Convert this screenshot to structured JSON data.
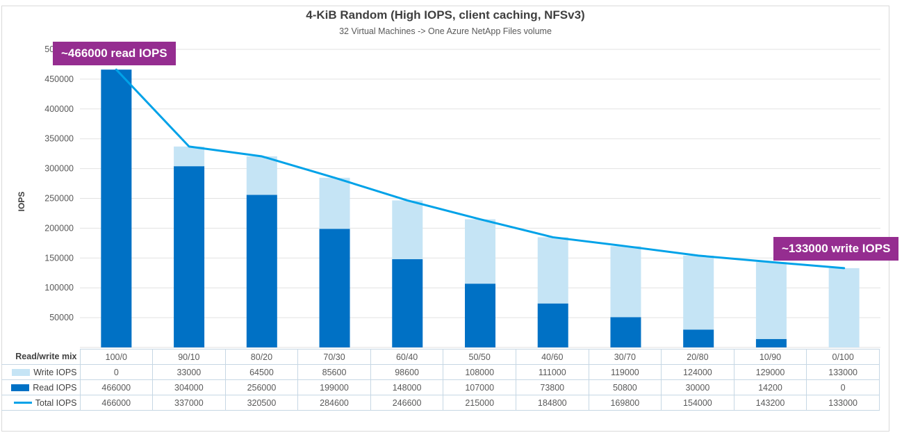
{
  "page": {
    "background": "#FFFFFF",
    "frame_border_color": "#D9D9D9",
    "accent_purple": "#952D90"
  },
  "chart_data": {
    "type": "bar+line",
    "title": "4-KiB Random (High IOPS, client caching, NFSv3)",
    "subtitle": "32 Virtual Machines -> One Azure NetApp Files volume",
    "ylabel": "IOPS",
    "ylim": [
      0,
      500000
    ],
    "ytick_step": 50000,
    "grid": true,
    "gridline_color": "#E2E2E2",
    "tick_label_color": "#595959",
    "legend_position": "table-left",
    "categories_label": "Read/write mix",
    "categories": [
      "100/0",
      "90/10",
      "80/20",
      "70/30",
      "60/40",
      "50/50",
      "40/60",
      "30/70",
      "20/80",
      "10/90",
      "0/100"
    ],
    "series": [
      {
        "name": "Write IOPS",
        "type": "bar",
        "stack": "top",
        "color": "#C5E4F5",
        "values": [
          0,
          33000,
          64500,
          85600,
          98600,
          108000,
          111000,
          119000,
          124000,
          129000,
          133000
        ]
      },
      {
        "name": "Read IOPS",
        "type": "bar",
        "stack": "base",
        "color": "#0071C5",
        "values": [
          466000,
          304000,
          256000,
          199000,
          148000,
          107000,
          73800,
          50800,
          30000,
          14200,
          0
        ]
      },
      {
        "name": "Total IOPS",
        "type": "line",
        "color": "#00A2E8",
        "values": [
          466000,
          337000,
          320500,
          284600,
          246600,
          215000,
          184800,
          169800,
          154000,
          143200,
          133000
        ]
      }
    ],
    "annotations": [
      {
        "id": "read",
        "text": "~466000 read IOPS",
        "background": "#952D90",
        "text_color": "#FFFFFF",
        "position": "top-left"
      },
      {
        "id": "write",
        "text": "~133000 write IOPS",
        "background": "#952D90",
        "text_color": "#FFFFFF",
        "position": "middle-right"
      }
    ]
  }
}
